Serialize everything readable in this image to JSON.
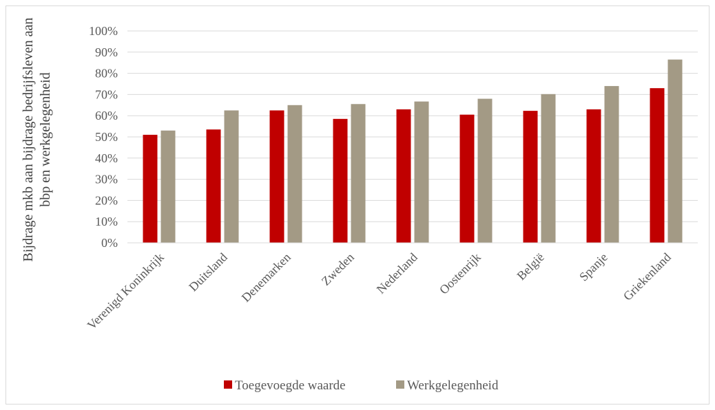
{
  "chart_data": {
    "type": "bar",
    "title": "",
    "ylabel_lines": [
      "Bijdrage mkb aan bijdrage bedrijfsleven aan",
      "bbp en werkgelegenheid"
    ],
    "xlabel": "",
    "ylim": [
      0,
      100
    ],
    "y_ticks": [
      "0%",
      "10%",
      "20%",
      "30%",
      "40%",
      "50%",
      "60%",
      "70%",
      "80%",
      "90%",
      "100%"
    ],
    "grid": true,
    "legend_position": "bottom",
    "categories": [
      "Verenigd Koninkrijk",
      "Duitsland",
      "Denemarken",
      "Zweden",
      "Nederland",
      "Oostenrijk",
      "België",
      "Spanje",
      "Griekenland"
    ],
    "series": [
      {
        "name": "Toegevoegde waarde",
        "color": "#c00000",
        "values": [
          51,
          53.5,
          62.5,
          58.5,
          63,
          60.5,
          62.3,
          63,
          73
        ]
      },
      {
        "name": "Werkgelegenheid",
        "color": "#a39a85",
        "values": [
          53,
          62.5,
          65,
          65.5,
          66.7,
          68,
          70.2,
          74,
          86.5
        ]
      }
    ]
  }
}
